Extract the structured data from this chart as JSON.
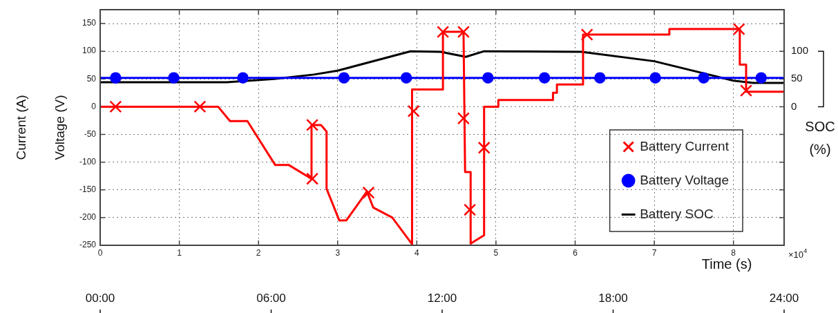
{
  "chart_data": {
    "type": "line",
    "xlabel": "Time (s)",
    "ylabel": [
      "Current (A)",
      "Voltage (V)"
    ],
    "y2label": "SOC (%)",
    "annotations": [
      "×10$^{4}$"
    ],
    "xlim": [
      0,
      8.64
    ],
    "xticks": [
      0,
      1,
      2,
      3,
      4,
      5,
      6,
      7,
      8
    ],
    "ylim": [
      -250,
      175
    ],
    "yticks": [
      -250,
      -200,
      -150,
      -100,
      -50,
      0,
      50,
      100,
      150
    ],
    "y2lim": [
      -250,
      175
    ],
    "y2ticks": [
      0,
      50,
      100
    ],
    "x2lim": [
      0,
      24
    ],
    "x2ticks": [
      {
        "value": 0,
        "label": "00:00"
      },
      {
        "value": 6,
        "label": "06:00"
      },
      {
        "value": 12,
        "label": "12:00"
      },
      {
        "value": 18,
        "label": "18:00"
      },
      {
        "value": 24,
        "label": "24:00"
      }
    ],
    "grid": true,
    "legend": "bottom right",
    "series": [
      {
        "color": "#ff0000",
        "marker": "none",
        "x": [
          0,
          1.49,
          1.64,
          1.86,
          2.21,
          2.38,
          2.67,
          2.67,
          2.79,
          2.86,
          2.86,
          3.02,
          3.11,
          3.37,
          3.45,
          3.69,
          3.94,
          3.94,
          4.33,
          4.33,
          4.59,
          4.61,
          4.68,
          4.68,
          4.85,
          4.85,
          5.03,
          5.03,
          5.72,
          5.72,
          5.77,
          5.77,
          6.1,
          6.1,
          7.19,
          7.19,
          8.08,
          8.08,
          8.16,
          8.16,
          8.64
        ],
        "values": [
          0,
          0,
          -26,
          -26,
          -105,
          -105,
          -130,
          -33,
          -33,
          -45,
          -148,
          -205,
          -205,
          -153,
          -182,
          -200,
          -248,
          31,
          31,
          135,
          135,
          -118,
          -118,
          -247,
          -232,
          0,
          0,
          12,
          12,
          25,
          25,
          40,
          40,
          130,
          130,
          140,
          140,
          76,
          76,
          27,
          27
        ]
      },
      {
        "name": "Battery Current",
        "type": "scatter",
        "color": "#ff0000",
        "marker": "cross",
        "x": [
          0.195,
          1.26,
          2.68,
          2.68,
          3.39,
          3.96,
          4.33,
          4.59,
          4.59,
          4.67,
          4.85,
          6.15,
          8.07,
          8.16
        ],
        "values": [
          0,
          0,
          -33,
          -130,
          -155,
          -8,
          135,
          135,
          -21,
          -186,
          -74,
          130,
          140,
          29
        ]
      },
      {
        "color": "#0000ff",
        "marker": "none",
        "x": [
          0,
          8.64
        ],
        "values": [
          52,
          52
        ]
      },
      {
        "name": "Battery Voltage",
        "type": "scatter",
        "color": "#0000ff",
        "marker": "circle",
        "x": [
          0.195,
          0.929,
          1.803,
          3.08,
          3.867,
          4.899,
          5.613,
          6.313,
          7.013,
          7.624,
          8.35
        ],
        "values": [
          52,
          52,
          52,
          52,
          52,
          52,
          52,
          52,
          52,
          52,
          52
        ]
      },
      {
        "name": "Battery SOC",
        "axis": "y2",
        "color": "#000000",
        "marker": "none",
        "x": [
          0,
          1.6,
          2.2,
          2.7,
          3.0,
          3.92,
          4.3,
          4.62,
          4.85,
          6.08,
          7.0,
          8.0,
          8.25,
          8.64
        ],
        "values": [
          44,
          44,
          50,
          58,
          65,
          100,
          99,
          90,
          100,
          99,
          82,
          47,
          43,
          43
        ]
      }
    ]
  }
}
